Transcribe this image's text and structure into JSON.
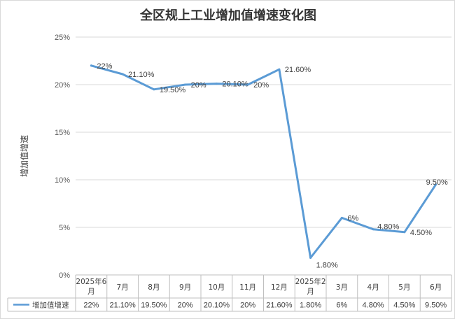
{
  "chart_data": {
    "type": "line",
    "title": "全区规上工业增加值增速变化图",
    "ylabel": "增加值增速",
    "xlabel": "",
    "ylim": [
      0,
      25
    ],
    "yticks": [
      "0%",
      "5%",
      "10%",
      "15%",
      "20%",
      "25%"
    ],
    "categories": [
      [
        "2025年6",
        "月"
      ],
      [
        "7月"
      ],
      [
        "8月"
      ],
      [
        "9月"
      ],
      [
        "10月"
      ],
      [
        "11月"
      ],
      [
        "12月"
      ],
      [
        "2025年2",
        "月"
      ],
      [
        "3月"
      ],
      [
        "4月"
      ],
      [
        "5月"
      ],
      [
        "6月"
      ]
    ],
    "series": [
      {
        "name": "增加值增速",
        "color": "#5b9bd5",
        "values": [
          22,
          21.1,
          19.5,
          20,
          20.1,
          20,
          21.6,
          1.8,
          6,
          4.8,
          4.5,
          9.5
        ],
        "labels": [
          "22%",
          "21.10%",
          "19.50%",
          "20%",
          "20.10%",
          "20%",
          "21.60%",
          "1.80%",
          "6%",
          "4.80%",
          "4.50%",
          "9.50%"
        ]
      }
    ],
    "grid": true,
    "legend": "data-table-left"
  }
}
